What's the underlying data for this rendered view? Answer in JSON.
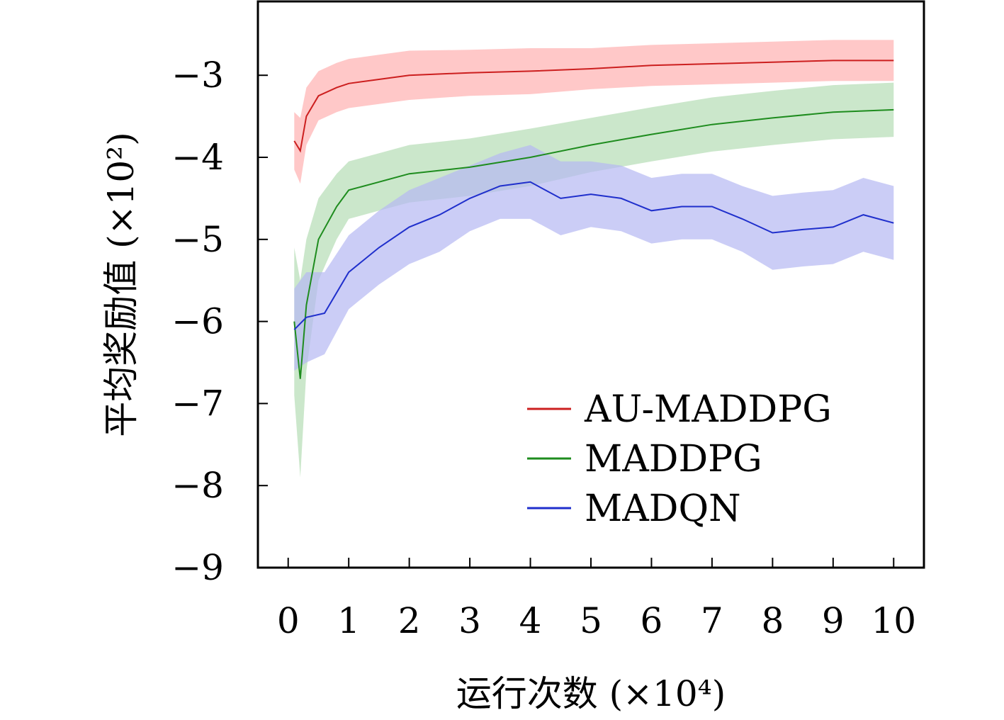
{
  "chart_data": {
    "type": "line",
    "xlabel": "运行次数 (×10⁴)",
    "ylabel": "平均奖励值 (×10²)",
    "xlim": [
      -0.5,
      10.5
    ],
    "ylim": [
      -9,
      -2.1
    ],
    "xticks": [
      0,
      1,
      2,
      3,
      4,
      5,
      6,
      7,
      8,
      9,
      10
    ],
    "yticks": [
      -9,
      -8,
      -7,
      -6,
      -5,
      -4,
      -3
    ],
    "xtick_labels": [
      "0",
      "1",
      "2",
      "3",
      "4",
      "5",
      "6",
      "7",
      "8",
      "9",
      "10"
    ],
    "ytick_labels": [
      "−9",
      "−8",
      "−7",
      "−6",
      "−5",
      "−4",
      "−3"
    ],
    "grid": false,
    "legend_position": "lower-right",
    "series": [
      {
        "name": "AU-MADDPG",
        "color": "#cc1f1f",
        "band_color": "#ffb0b0",
        "x": [
          0.1,
          0.2,
          0.3,
          0.5,
          0.8,
          1.0,
          1.5,
          2.0,
          3.0,
          4.0,
          5.0,
          6.0,
          7.0,
          8.0,
          9.0,
          10.0
        ],
        "y": [
          -3.8,
          -3.92,
          -3.5,
          -3.25,
          -3.15,
          -3.1,
          -3.05,
          -3.0,
          -2.97,
          -2.95,
          -2.92,
          -2.88,
          -2.86,
          -2.84,
          -2.82,
          -2.82
        ],
        "band": [
          0.35,
          0.4,
          0.35,
          0.3,
          0.3,
          0.3,
          0.3,
          0.3,
          0.28,
          0.28,
          0.25,
          0.25,
          0.25,
          0.25,
          0.25,
          0.25
        ]
      },
      {
        "name": "MADDPG",
        "color": "#1e8c1e",
        "band_color": "#b5ddb5",
        "x": [
          0.1,
          0.2,
          0.3,
          0.5,
          0.8,
          1.0,
          1.5,
          2.0,
          3.0,
          4.0,
          5.0,
          6.0,
          7.0,
          8.0,
          9.0,
          10.0
        ],
        "y": [
          -6.0,
          -6.7,
          -5.8,
          -5.0,
          -4.6,
          -4.4,
          -4.3,
          -4.2,
          -4.12,
          -4.0,
          -3.85,
          -3.72,
          -3.6,
          -3.52,
          -3.45,
          -3.42
        ],
        "band": [
          0.9,
          1.2,
          0.8,
          0.5,
          0.4,
          0.35,
          0.35,
          0.35,
          0.35,
          0.35,
          0.33,
          0.33,
          0.33,
          0.33,
          0.33,
          0.33
        ]
      },
      {
        "name": "MADQN",
        "color": "#1f2fcc",
        "band_color": "#b5b8f2",
        "x": [
          0.1,
          0.3,
          0.6,
          1.0,
          1.5,
          2.0,
          2.5,
          3.0,
          3.5,
          4.0,
          4.5,
          5.0,
          5.5,
          6.0,
          6.5,
          7.0,
          7.5,
          8.0,
          8.5,
          9.0,
          9.5,
          10.0
        ],
        "y": [
          -6.1,
          -5.95,
          -5.9,
          -5.4,
          -5.1,
          -4.85,
          -4.7,
          -4.5,
          -4.35,
          -4.3,
          -4.5,
          -4.45,
          -4.5,
          -4.65,
          -4.6,
          -4.6,
          -4.75,
          -4.92,
          -4.88,
          -4.85,
          -4.7,
          -4.8
        ],
        "band": [
          0.5,
          0.55,
          0.5,
          0.45,
          0.45,
          0.45,
          0.45,
          0.4,
          0.4,
          0.45,
          0.45,
          0.4,
          0.4,
          0.4,
          0.4,
          0.4,
          0.4,
          0.45,
          0.45,
          0.45,
          0.45,
          0.45
        ]
      }
    ]
  }
}
